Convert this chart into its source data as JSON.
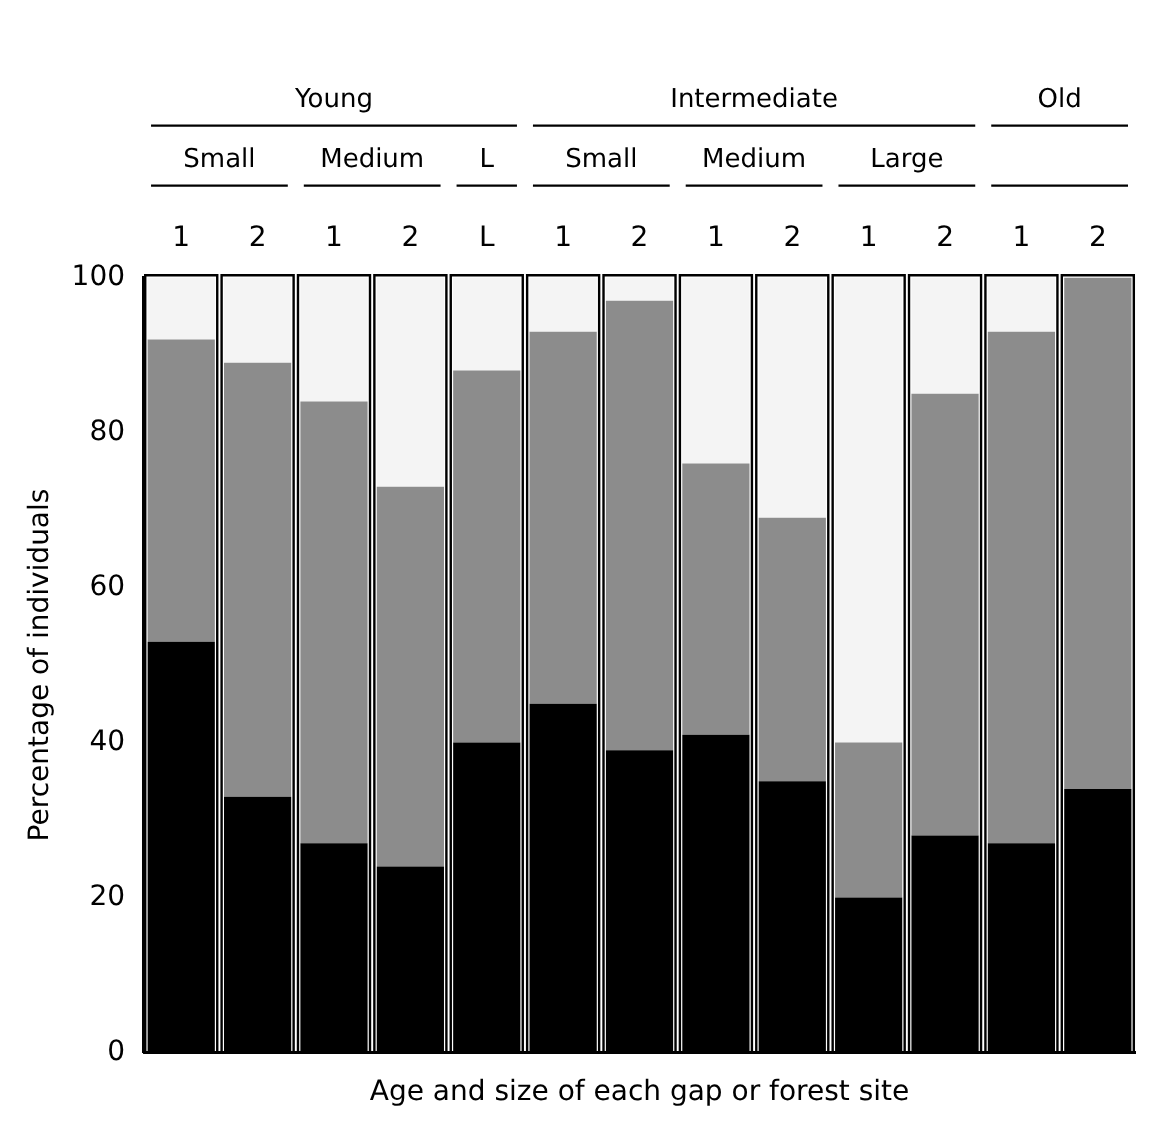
{
  "chart_data": {
    "type": "bar",
    "stacked": true,
    "xlabel": "Age and size of each gap or forest site",
    "ylabel": "Percentage of individuals",
    "categories": [
      "1",
      "2",
      "1",
      "2",
      "L",
      "1",
      "2",
      "1",
      "2",
      "1",
      "2",
      "1",
      "2"
    ],
    "annotations": [
      "Young",
      "Small",
      "Medium",
      "L",
      "Intermediate",
      "Small",
      "Medium",
      "Large",
      "Old"
    ],
    "series": [
      {
        "color": "#000000",
        "values": [
          53,
          33,
          27,
          24,
          40,
          45,
          39,
          41,
          35,
          20,
          28,
          27,
          34
        ]
      },
      {
        "color": "#8c8c8c",
        "values": [
          39,
          56,
          57,
          49,
          48,
          48,
          58,
          35,
          34,
          20,
          57,
          66,
          66
        ]
      },
      {
        "color": "#f4f4f4",
        "values": [
          8,
          11,
          16,
          27,
          12,
          7,
          3,
          24,
          31,
          60,
          15,
          7,
          0
        ]
      }
    ],
    "ylim": [
      0,
      100
    ],
    "yticks": [
      0,
      20,
      40,
      60,
      80,
      100
    ],
    "grid": false,
    "legend": false
  }
}
